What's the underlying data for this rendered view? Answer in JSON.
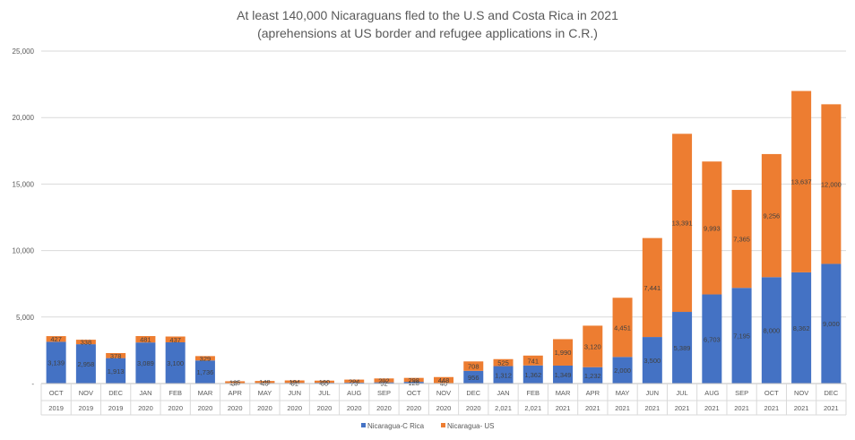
{
  "chart_data": {
    "type": "bar",
    "stacked": true,
    "title": "At least 140,000 Nicaraguans fled to the U.S and Costa Rica in 2021",
    "subtitle": "(aprehensions at US border and refugee applications in C.R.)",
    "categories": [
      {
        "month": "OCT",
        "year": "2019"
      },
      {
        "month": "NOV",
        "year": "2019"
      },
      {
        "month": "DEC",
        "year": "2019"
      },
      {
        "month": "JAN",
        "year": "2020"
      },
      {
        "month": "FEB",
        "year": "2020"
      },
      {
        "month": "MAR",
        "year": "2020"
      },
      {
        "month": "APR",
        "year": "2020"
      },
      {
        "month": "MAY",
        "year": "2020"
      },
      {
        "month": "JUN",
        "year": "2020"
      },
      {
        "month": "JUL",
        "year": "2020"
      },
      {
        "month": "AUG",
        "year": "2020"
      },
      {
        "month": "SEP",
        "year": "2020"
      },
      {
        "month": "OCT",
        "year": "2020"
      },
      {
        "month": "NOV",
        "year": "2020"
      },
      {
        "month": "DEC",
        "year": "2020"
      },
      {
        "month": "JAN",
        "year": "2,021"
      },
      {
        "month": "FEB",
        "year": "2,021"
      },
      {
        "month": "MAR",
        "year": "2021"
      },
      {
        "month": "APR",
        "year": "2021"
      },
      {
        "month": "MAY",
        "year": "2021"
      },
      {
        "month": "JUN",
        "year": "2021"
      },
      {
        "month": "JUL",
        "year": "2021"
      },
      {
        "month": "AUG",
        "year": "2021"
      },
      {
        "month": "SEP",
        "year": "2021"
      },
      {
        "month": "OCT",
        "year": "2021"
      },
      {
        "month": "NOV",
        "year": "2021"
      },
      {
        "month": "DEC",
        "year": "2021"
      }
    ],
    "series": [
      {
        "name": "Nicaragua-C Rica",
        "color": "#4472C4",
        "values": [
          3139,
          2958,
          1913,
          3089,
          3100,
          1736,
          37,
          46,
          51,
          60,
          73,
          92,
          128,
          40,
          956,
          1312,
          1362,
          1349,
          1232,
          2000,
          3500,
          5389,
          6703,
          7195,
          8000,
          8362,
          9000
        ]
      },
      {
        "name": "Nicaragua- US",
        "color": "#ED7D31",
        "values": [
          427,
          338,
          378,
          481,
          437,
          329,
          135,
          148,
          184,
          160,
          224,
          292,
          298,
          448,
          708,
          525,
          741,
          1990,
          3120,
          4451,
          7441,
          13391,
          9993,
          7365,
          9256,
          13637,
          12000
        ]
      }
    ],
    "ylim": [
      0,
      25000
    ],
    "yticks": [
      0,
      5000,
      10000,
      15000,
      20000,
      25000
    ],
    "ytick_labels": [
      "-",
      "5,000",
      "10,000",
      "15,000",
      "20,000",
      "25,000"
    ],
    "grid": true,
    "legend_position": "bottom"
  }
}
